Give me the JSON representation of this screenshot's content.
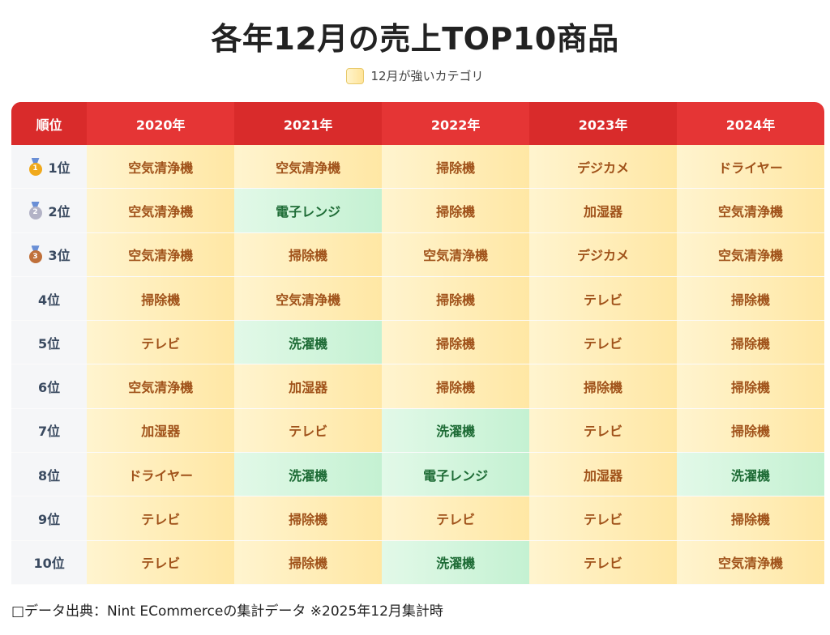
{
  "title": "各年12月の売上TOP10商品",
  "legend": {
    "label": "12月が強いカテゴリ"
  },
  "colors": {
    "header": "#e53535",
    "highlight_yellow": "#ffe7a4",
    "highlight_green": "#c4f1d2"
  },
  "chart_data": {
    "type": "table",
    "columns": [
      "順位",
      "2020年",
      "2021年",
      "2022年",
      "2023年",
      "2024年"
    ],
    "rows": [
      {
        "rank": "1位",
        "medal": "gold",
        "medal_num": "1",
        "cells": [
          "空気清浄機",
          "空気清浄機",
          "掃除機",
          "デジカメ",
          "ドライヤー"
        ],
        "strong": [
          true,
          true,
          true,
          true,
          true
        ]
      },
      {
        "rank": "2位",
        "medal": "silver",
        "medal_num": "2",
        "cells": [
          "空気清浄機",
          "電子レンジ",
          "掃除機",
          "加湿器",
          "空気清浄機"
        ],
        "strong": [
          true,
          false,
          true,
          true,
          true
        ]
      },
      {
        "rank": "3位",
        "medal": "bronze",
        "medal_num": "3",
        "cells": [
          "空気清浄機",
          "掃除機",
          "空気清浄機",
          "デジカメ",
          "空気清浄機"
        ],
        "strong": [
          true,
          true,
          true,
          true,
          true
        ]
      },
      {
        "rank": "4位",
        "medal": "",
        "medal_num": "",
        "cells": [
          "掃除機",
          "空気清浄機",
          "掃除機",
          "テレビ",
          "掃除機"
        ],
        "strong": [
          true,
          true,
          true,
          true,
          true
        ]
      },
      {
        "rank": "5位",
        "medal": "",
        "medal_num": "",
        "cells": [
          "テレビ",
          "洗濯機",
          "掃除機",
          "テレビ",
          "掃除機"
        ],
        "strong": [
          true,
          false,
          true,
          true,
          true
        ]
      },
      {
        "rank": "6位",
        "medal": "",
        "medal_num": "",
        "cells": [
          "空気清浄機",
          "加湿器",
          "掃除機",
          "掃除機",
          "掃除機"
        ],
        "strong": [
          true,
          true,
          true,
          true,
          true
        ]
      },
      {
        "rank": "7位",
        "medal": "",
        "medal_num": "",
        "cells": [
          "加湿器",
          "テレビ",
          "洗濯機",
          "テレビ",
          "掃除機"
        ],
        "strong": [
          true,
          true,
          false,
          true,
          true
        ]
      },
      {
        "rank": "8位",
        "medal": "",
        "medal_num": "",
        "cells": [
          "ドライヤー",
          "洗濯機",
          "電子レンジ",
          "加湿器",
          "洗濯機"
        ],
        "strong": [
          true,
          false,
          false,
          true,
          false
        ]
      },
      {
        "rank": "9位",
        "medal": "",
        "medal_num": "",
        "cells": [
          "テレビ",
          "掃除機",
          "テレビ",
          "テレビ",
          "掃除機"
        ],
        "strong": [
          true,
          true,
          true,
          true,
          true
        ]
      },
      {
        "rank": "10位",
        "medal": "",
        "medal_num": "",
        "cells": [
          "テレビ",
          "掃除機",
          "洗濯機",
          "テレビ",
          "空気清浄機"
        ],
        "strong": [
          true,
          true,
          false,
          true,
          true
        ]
      }
    ]
  },
  "footer": "□データ出典：Nint ECommerceの集計データ ※2025年12月集計時"
}
